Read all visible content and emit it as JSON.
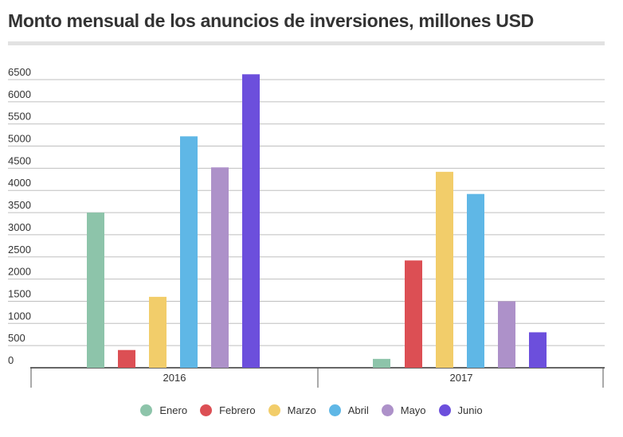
{
  "chart_data": {
    "type": "bar",
    "title": "Monto mensual de los anuncios de inversiones, millones USD",
    "categories": [
      "2016",
      "2017"
    ],
    "series": [
      {
        "name": "Enero",
        "color": "#8dc4aa",
        "values": [
          3500,
          200
        ]
      },
      {
        "name": "Febrero",
        "color": "#dc4f54",
        "values": [
          400,
          2420
        ]
      },
      {
        "name": "Marzo",
        "color": "#f2cd6a",
        "values": [
          1600,
          4420
        ]
      },
      {
        "name": "Abril",
        "color": "#5fb7e6",
        "values": [
          5220,
          3920
        ]
      },
      {
        "name": "Mayo",
        "color": "#ad91c9",
        "values": [
          4520,
          1500
        ]
      },
      {
        "name": "Junio",
        "color": "#6c4fdc",
        "values": [
          6620,
          800
        ]
      }
    ],
    "yticks": [
      0,
      500,
      1000,
      1500,
      2000,
      2500,
      3000,
      3500,
      4000,
      4500,
      5000,
      5500,
      6000,
      6500
    ],
    "ylim": [
      0,
      6700
    ],
    "xlabel": "",
    "ylabel": "",
    "grid": true,
    "legend_position": "bottom"
  }
}
